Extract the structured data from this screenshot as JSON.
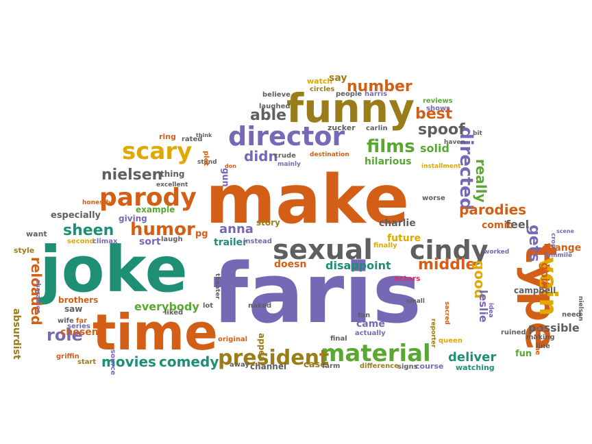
{
  "palette": {
    "orange": "#D35F16",
    "purple": "#7668B5",
    "teal": "#1E8F74",
    "gray": "#5F5F5F",
    "olive": "#9A7D1A",
    "gold": "#E0A800",
    "green": "#59A832",
    "pink": "#D62F6E"
  },
  "words": [
    {
      "text": "make",
      "color": "orange"
    },
    {
      "text": "faris",
      "color": "purple"
    },
    {
      "text": "joke",
      "color": "teal"
    },
    {
      "text": "time",
      "color": "orange"
    },
    {
      "text": "funny",
      "color": "olive"
    },
    {
      "text": "type",
      "color": "orange"
    },
    {
      "text": "sexual",
      "color": "gray"
    },
    {
      "text": "cindy",
      "color": "gray"
    },
    {
      "text": "director",
      "color": "purple"
    },
    {
      "text": "parody",
      "color": "orange"
    },
    {
      "text": "scary",
      "color": "gold"
    },
    {
      "text": "material",
      "color": "green"
    },
    {
      "text": "president",
      "color": "olive"
    },
    {
      "text": "humor",
      "color": "orange"
    },
    {
      "text": "films",
      "color": "green"
    },
    {
      "text": "vein",
      "color": "gold"
    },
    {
      "text": "number",
      "color": "orange"
    },
    {
      "text": "nielsen",
      "color": "gray"
    },
    {
      "text": "sheen",
      "color": "teal"
    },
    {
      "text": "role",
      "color": "purple"
    },
    {
      "text": "directed",
      "color": "purple"
    },
    {
      "text": "parodies",
      "color": "orange"
    },
    {
      "text": "middle",
      "color": "orange"
    },
    {
      "text": "reloaded",
      "color": "orange"
    },
    {
      "text": "able",
      "color": "gray"
    },
    {
      "text": "spoof",
      "color": "gray"
    },
    {
      "text": "best",
      "color": "orange"
    },
    {
      "text": "didn",
      "color": "purple"
    },
    {
      "text": "really",
      "color": "green"
    },
    {
      "text": "gets",
      "color": "purple"
    },
    {
      "text": "good",
      "color": "gold"
    },
    {
      "text": "movies",
      "color": "teal"
    },
    {
      "text": "comedy",
      "color": "teal"
    },
    {
      "text": "deliver",
      "color": "teal"
    },
    {
      "text": "disappoint",
      "color": "teal"
    },
    {
      "text": "everybody",
      "color": "green"
    },
    {
      "text": "anna",
      "color": "purple"
    },
    {
      "text": "charlie",
      "color": "gray"
    },
    {
      "text": "future",
      "color": "gold"
    },
    {
      "text": "hilarious",
      "color": "green"
    },
    {
      "text": "solid",
      "color": "green"
    },
    {
      "text": "doesn",
      "color": "orange"
    },
    {
      "text": "going",
      "color": "orange"
    },
    {
      "text": "change",
      "color": "orange"
    },
    {
      "text": "possible",
      "color": "gray"
    },
    {
      "text": "leslie",
      "color": "purple"
    },
    {
      "text": "came",
      "color": "purple"
    },
    {
      "text": "feel",
      "color": "gray"
    },
    {
      "text": "comic",
      "color": "orange"
    },
    {
      "text": "especially",
      "color": "gray"
    },
    {
      "text": "chosen",
      "color": "orange"
    },
    {
      "text": "saw",
      "color": "gray"
    },
    {
      "text": "absurdist",
      "color": "olive"
    },
    {
      "text": "appear",
      "color": "olive"
    },
    {
      "text": "trailer",
      "color": "teal"
    },
    {
      "text": "story",
      "color": "olive"
    },
    {
      "text": "example",
      "color": "green"
    },
    {
      "text": "sort",
      "color": "purple"
    },
    {
      "text": "thing",
      "color": "gray"
    },
    {
      "text": "ring",
      "color": "orange"
    },
    {
      "text": "rated",
      "color": "gray"
    },
    {
      "text": "giving",
      "color": "purple"
    },
    {
      "text": "style",
      "color": "olive"
    },
    {
      "text": "want",
      "color": "gray"
    },
    {
      "text": "second",
      "color": "gold"
    },
    {
      "text": "climax",
      "color": "purple"
    },
    {
      "text": "laugh",
      "color": "gray"
    },
    {
      "text": "pg",
      "color": "orange"
    },
    {
      "text": "instead",
      "color": "purple"
    },
    {
      "text": "finally",
      "color": "gold"
    },
    {
      "text": "actors",
      "color": "pink"
    },
    {
      "text": "campbell",
      "color": "gray"
    },
    {
      "text": "fun",
      "color": "green"
    },
    {
      "text": "watching",
      "color": "teal"
    },
    {
      "text": "course",
      "color": "purple"
    },
    {
      "text": "signs",
      "color": "gray"
    },
    {
      "text": "difference",
      "color": "olive"
    },
    {
      "text": "case",
      "color": "olive"
    },
    {
      "text": "farm",
      "color": "gray"
    },
    {
      "text": "channel",
      "color": "gray"
    },
    {
      "text": "away",
      "color": "gray"
    },
    {
      "text": "source",
      "color": "purple"
    },
    {
      "text": "original",
      "color": "orange"
    },
    {
      "text": "start",
      "color": "olive"
    },
    {
      "text": "griffin",
      "color": "orange"
    },
    {
      "text": "series",
      "color": "purple"
    },
    {
      "text": "wife",
      "color": "gray"
    },
    {
      "text": "far",
      "color": "orange"
    },
    {
      "text": "brothers",
      "color": "orange"
    },
    {
      "text": "character",
      "color": "purple"
    },
    {
      "text": "lot",
      "color": "gray"
    },
    {
      "text": "liked",
      "color": "gray"
    },
    {
      "text": "naked",
      "color": "gray"
    },
    {
      "text": "theater",
      "color": "gray"
    },
    {
      "text": "final",
      "color": "gray"
    },
    {
      "text": "actually",
      "color": "purple"
    },
    {
      "text": "fan",
      "color": "gray"
    },
    {
      "text": "small",
      "color": "gray"
    },
    {
      "text": "reporter",
      "color": "olive"
    },
    {
      "text": "sacred",
      "color": "orange"
    },
    {
      "text": "queen",
      "color": "gold"
    },
    {
      "text": "idea",
      "color": "purple"
    },
    {
      "text": "ruined",
      "color": "gray"
    },
    {
      "text": "airplane",
      "color": "orange"
    },
    {
      "text": "making",
      "color": "gray"
    },
    {
      "text": "line",
      "color": "gray"
    },
    {
      "text": "need",
      "color": "gray"
    },
    {
      "text": "worked",
      "color": "purple"
    },
    {
      "text": "femmile",
      "color": "purple"
    },
    {
      "text": "crop",
      "color": "purple"
    },
    {
      "text": "scene",
      "color": "purple"
    },
    {
      "text": "nielsen",
      "color": "gray"
    },
    {
      "text": "worse",
      "color": "gray"
    },
    {
      "text": "watch",
      "color": "gold"
    },
    {
      "text": "say",
      "color": "olive"
    },
    {
      "text": "circles",
      "color": "olive"
    },
    {
      "text": "people",
      "color": "gray"
    },
    {
      "text": "harris",
      "color": "purple"
    },
    {
      "text": "believe",
      "color": "gray"
    },
    {
      "text": "laughed",
      "color": "gray"
    },
    {
      "text": "zucker",
      "color": "gray"
    },
    {
      "text": "carlin",
      "color": "gray"
    },
    {
      "text": "reviews",
      "color": "green"
    },
    {
      "text": "shows",
      "color": "purple"
    },
    {
      "text": "bit",
      "color": "gray"
    },
    {
      "text": "haven",
      "color": "gray"
    },
    {
      "text": "installment",
      "color": "gold"
    },
    {
      "text": "destination",
      "color": "orange"
    },
    {
      "text": "crude",
      "color": "gray"
    },
    {
      "text": "mainly",
      "color": "purple"
    },
    {
      "text": "don",
      "color": "orange"
    },
    {
      "text": "gun",
      "color": "purple"
    },
    {
      "text": "stand",
      "color": "gray"
    },
    {
      "text": "plot",
      "color": "orange"
    },
    {
      "text": "excellent",
      "color": "gray"
    },
    {
      "text": "honestly",
      "color": "orange"
    },
    {
      "text": "think",
      "color": "gray"
    }
  ]
}
